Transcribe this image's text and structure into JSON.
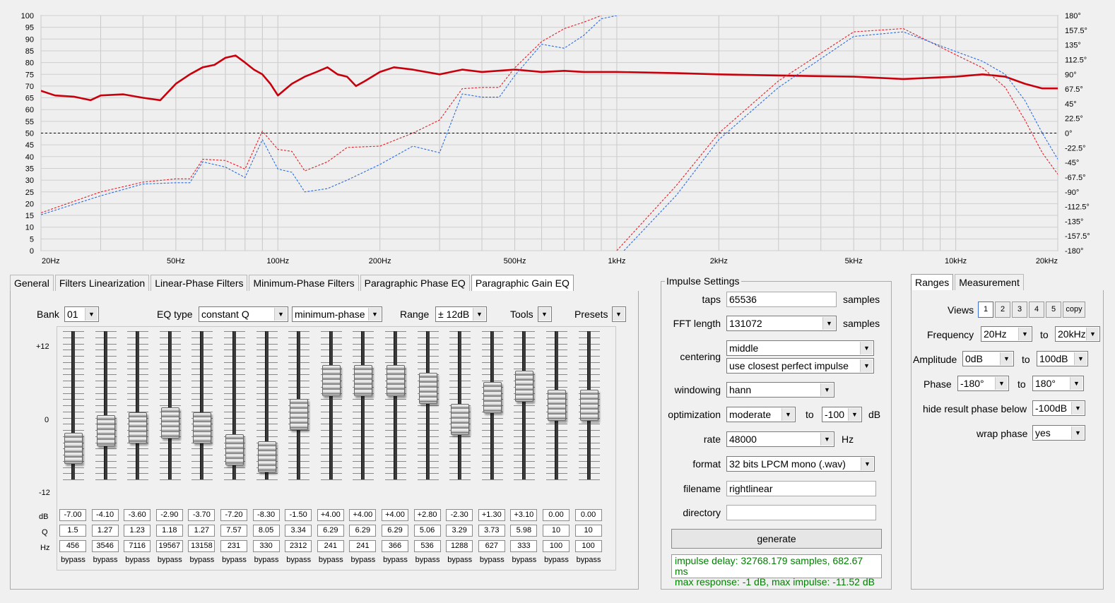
{
  "colors": {
    "magnitude": "#c8000c",
    "phase_red": "#e0202a",
    "phase_blue": "#2a6de0",
    "status_text": "#008000"
  },
  "chart_data": {
    "type": "line",
    "x_scale": "log",
    "x_range_hz": [
      20,
      20000
    ],
    "x_ticks": [
      "20Hz",
      "50Hz",
      "100Hz",
      "200Hz",
      "500Hz",
      "1kHz",
      "2kHz",
      "5kHz",
      "10kHz",
      "20kHz"
    ],
    "x_tick_values": [
      20,
      50,
      100,
      200,
      500,
      1000,
      2000,
      5000,
      10000,
      20000
    ],
    "ylim_left": [
      0,
      100
    ],
    "y_ticks_left": [
      "0",
      "5",
      "10",
      "15",
      "20",
      "25",
      "30",
      "35",
      "40",
      "45",
      "50",
      "55",
      "60",
      "65",
      "70",
      "75",
      "80",
      "85",
      "90",
      "95",
      "100"
    ],
    "ylim_right": [
      -180,
      180
    ],
    "y_ticks_right": [
      "-180°",
      "-157.5°",
      "-135°",
      "-112.5°",
      "-90°",
      "-67.5°",
      "-45°",
      "-22.5°",
      "0°",
      "22.5°",
      "45°",
      "67.5°",
      "90°",
      "112.5°",
      "135°",
      "157.5°",
      "180°"
    ],
    "grid": true,
    "reference_line_y": 50,
    "series": [
      {
        "axis": "left",
        "style": "solid",
        "color": "#c8000c",
        "points": [
          [
            20,
            68
          ],
          [
            22,
            66
          ],
          [
            25,
            65.5
          ],
          [
            28,
            64
          ],
          [
            30,
            66
          ],
          [
            35,
            66.5
          ],
          [
            40,
            65
          ],
          [
            45,
            64
          ],
          [
            50,
            71
          ],
          [
            55,
            75
          ],
          [
            60,
            78
          ],
          [
            65,
            79
          ],
          [
            70,
            82
          ],
          [
            75,
            83
          ],
          [
            80,
            80
          ],
          [
            85,
            77
          ],
          [
            90,
            75
          ],
          [
            95,
            71
          ],
          [
            100,
            66
          ],
          [
            110,
            71
          ],
          [
            120,
            74
          ],
          [
            130,
            76
          ],
          [
            140,
            78
          ],
          [
            150,
            75
          ],
          [
            160,
            74
          ],
          [
            170,
            70
          ],
          [
            180,
            72
          ],
          [
            200,
            76
          ],
          [
            220,
            78
          ],
          [
            250,
            77
          ],
          [
            300,
            75
          ],
          [
            350,
            77
          ],
          [
            400,
            76
          ],
          [
            500,
            77
          ],
          [
            600,
            76
          ],
          [
            700,
            76.5
          ],
          [
            800,
            76
          ],
          [
            1000,
            76
          ],
          [
            1500,
            75.5
          ],
          [
            2000,
            75
          ],
          [
            3000,
            74.5
          ],
          [
            5000,
            74
          ],
          [
            7000,
            73
          ],
          [
            10000,
            74
          ],
          [
            12000,
            75
          ],
          [
            14000,
            74
          ],
          [
            16000,
            71
          ],
          [
            18000,
            69
          ],
          [
            20000,
            69
          ]
        ]
      },
      {
        "axis": "right",
        "style": "dashed",
        "color": "#e0202a",
        "points": [
          [
            20,
            -122
          ],
          [
            30,
            -90
          ],
          [
            40,
            -75
          ],
          [
            50,
            -70
          ],
          [
            55,
            -70
          ],
          [
            60,
            -40
          ],
          [
            70,
            -42
          ],
          [
            80,
            -55
          ],
          [
            90,
            3
          ],
          [
            100,
            -25
          ],
          [
            110,
            -28
          ],
          [
            120,
            -58
          ],
          [
            140,
            -44
          ],
          [
            160,
            -22
          ],
          [
            200,
            -20
          ],
          [
            250,
            0
          ],
          [
            300,
            20
          ],
          [
            350,
            68
          ],
          [
            400,
            70
          ],
          [
            450,
            70
          ],
          [
            500,
            100
          ],
          [
            600,
            140
          ],
          [
            700,
            160
          ],
          [
            800,
            170
          ],
          [
            900,
            180
          ]
        ]
      },
      {
        "axis": "right",
        "style": "dashed",
        "color": "#2a6de0",
        "points": [
          [
            20,
            -125
          ],
          [
            30,
            -96
          ],
          [
            40,
            -78
          ],
          [
            50,
            -76
          ],
          [
            55,
            -76
          ],
          [
            60,
            -44
          ],
          [
            70,
            -52
          ],
          [
            80,
            -68
          ],
          [
            90,
            -10
          ],
          [
            100,
            -55
          ],
          [
            110,
            -60
          ],
          [
            120,
            -90
          ],
          [
            140,
            -85
          ],
          [
            160,
            -72
          ],
          [
            200,
            -48
          ],
          [
            250,
            -20
          ],
          [
            300,
            -30
          ],
          [
            350,
            60
          ],
          [
            400,
            55
          ],
          [
            450,
            55
          ],
          [
            500,
            88
          ],
          [
            600,
            136
          ],
          [
            700,
            130
          ],
          [
            800,
            150
          ],
          [
            900,
            175
          ],
          [
            1000,
            180
          ]
        ]
      },
      {
        "axis": "right",
        "style": "dashed",
        "color": "#e0202a",
        "points": [
          [
            1000,
            -180
          ],
          [
            1500,
            -80
          ],
          [
            2000,
            0
          ],
          [
            3000,
            80
          ],
          [
            5000,
            155
          ],
          [
            7000,
            160
          ],
          [
            10000,
            120
          ],
          [
            12000,
            100
          ],
          [
            14000,
            70
          ],
          [
            16000,
            20
          ],
          [
            18000,
            -30
          ],
          [
            20000,
            -63
          ]
        ]
      },
      {
        "axis": "right",
        "style": "dashed",
        "color": "#2a6de0",
        "points": [
          [
            1050,
            -180
          ],
          [
            1500,
            -95
          ],
          [
            2000,
            -10
          ],
          [
            3000,
            70
          ],
          [
            5000,
            148
          ],
          [
            7000,
            155
          ],
          [
            10000,
            125
          ],
          [
            12000,
            110
          ],
          [
            14000,
            90
          ],
          [
            16000,
            50
          ],
          [
            18000,
            0
          ],
          [
            20000,
            -40
          ]
        ]
      }
    ]
  },
  "tabs_left": [
    "General",
    "Filters Linearization",
    "Linear-Phase Filters",
    "Minimum-Phase Filters",
    "Paragraphic Phase EQ",
    "Paragraphic Gain EQ"
  ],
  "eq": {
    "bank_label": "Bank",
    "bank_value": "01",
    "eqtype_label": "EQ type",
    "eqtype_value": "constant Q",
    "phase_mode_value": "minimum-phase",
    "range_label": "Range",
    "range_value": "± 12dB",
    "tools_label": "Tools",
    "presets_label": "Presets",
    "scale_top": "+12",
    "scale_mid": "0",
    "scale_bottom": "-12",
    "row_db": "dB",
    "row_q": "Q",
    "row_hz": "Hz",
    "bands": [
      {
        "db": "-7.00",
        "q": "1.5",
        "hz": "456",
        "bypass": "bypass",
        "gain": -7.0
      },
      {
        "db": "-4.10",
        "q": "1.27",
        "hz": "3546",
        "bypass": "bypass",
        "gain": -4.1
      },
      {
        "db": "-3.60",
        "q": "1.23",
        "hz": "7116",
        "bypass": "bypass",
        "gain": -3.6
      },
      {
        "db": "-2.90",
        "q": "1.18",
        "hz": "19567",
        "bypass": "bypass",
        "gain": -2.9
      },
      {
        "db": "-3.70",
        "q": "1.27",
        "hz": "13158",
        "bypass": "bypass",
        "gain": -3.7
      },
      {
        "db": "-7.20",
        "q": "7.57",
        "hz": "231",
        "bypass": "bypass",
        "gain": -7.2
      },
      {
        "db": "-8.30",
        "q": "8.05",
        "hz": "330",
        "bypass": "bypass",
        "gain": -8.3
      },
      {
        "db": "-1.50",
        "q": "3.34",
        "hz": "2312",
        "bypass": "bypass",
        "gain": -1.5
      },
      {
        "db": "+4.00",
        "q": "6.29",
        "hz": "241",
        "bypass": "bypass",
        "gain": 4.0
      },
      {
        "db": "+4.00",
        "q": "6.29",
        "hz": "241",
        "bypass": "bypass",
        "gain": 4.0
      },
      {
        "db": "+4.00",
        "q": "6.29",
        "hz": "366",
        "bypass": "bypass",
        "gain": 4.0
      },
      {
        "db": "+2.80",
        "q": "5.06",
        "hz": "536",
        "bypass": "bypass",
        "gain": 2.8
      },
      {
        "db": "-2.30",
        "q": "3.29",
        "hz": "1288",
        "bypass": "bypass",
        "gain": -2.3
      },
      {
        "db": "+1.30",
        "q": "3.73",
        "hz": "627",
        "bypass": "bypass",
        "gain": 1.3
      },
      {
        "db": "+3.10",
        "q": "5.98",
        "hz": "333",
        "bypass": "bypass",
        "gain": 3.1
      },
      {
        "db": "0.00",
        "q": "10",
        "hz": "100",
        "bypass": "bypass",
        "gain": 0.0
      },
      {
        "db": "0.00",
        "q": "10",
        "hz": "100",
        "bypass": "bypass",
        "gain": 0.0
      }
    ]
  },
  "impulse": {
    "title": "Impulse Settings",
    "taps_label": "taps",
    "taps_value": "65536",
    "taps_unit": "samples",
    "fft_label": "FFT length",
    "fft_value": "131072",
    "fft_unit": "samples",
    "centering_label": "centering",
    "centering_value": "middle",
    "centering_mode": "use closest perfect impulse",
    "windowing_label": "windowing",
    "windowing_value": "hann",
    "optimization_label": "optimization",
    "optimization_value": "moderate",
    "opt_to": "to",
    "opt_db_value": "-100",
    "opt_unit": "dB",
    "rate_label": "rate",
    "rate_value": "48000",
    "rate_unit": "Hz",
    "format_label": "format",
    "format_value": "32 bits LPCM mono (.wav)",
    "filename_label": "filename",
    "filename_value": "rightlinear",
    "directory_label": "directory",
    "directory_value": "",
    "generate_label": "generate",
    "status_line1": "impulse delay: 32768.179 samples, 682.67 ms",
    "status_line2": "max response: -1 dB, max impulse: -11.52 dB"
  },
  "ranges": {
    "tabs": [
      "Ranges",
      "Measurement"
    ],
    "views_label": "Views",
    "views": [
      "1",
      "2",
      "3",
      "4",
      "5",
      "copy"
    ],
    "frequency_label": "Frequency",
    "freq_from": "20Hz",
    "freq_to": "20kHz",
    "amplitude_label": "Amplitude",
    "amp_from": "0dB",
    "amp_to": "100dB",
    "phase_label": "Phase",
    "phase_from": "-180°",
    "phase_to": "180°",
    "to_label": "to",
    "hide_label": "hide result phase below",
    "hide_value": "-100dB",
    "wrap_label": "wrap phase",
    "wrap_value": "yes"
  }
}
